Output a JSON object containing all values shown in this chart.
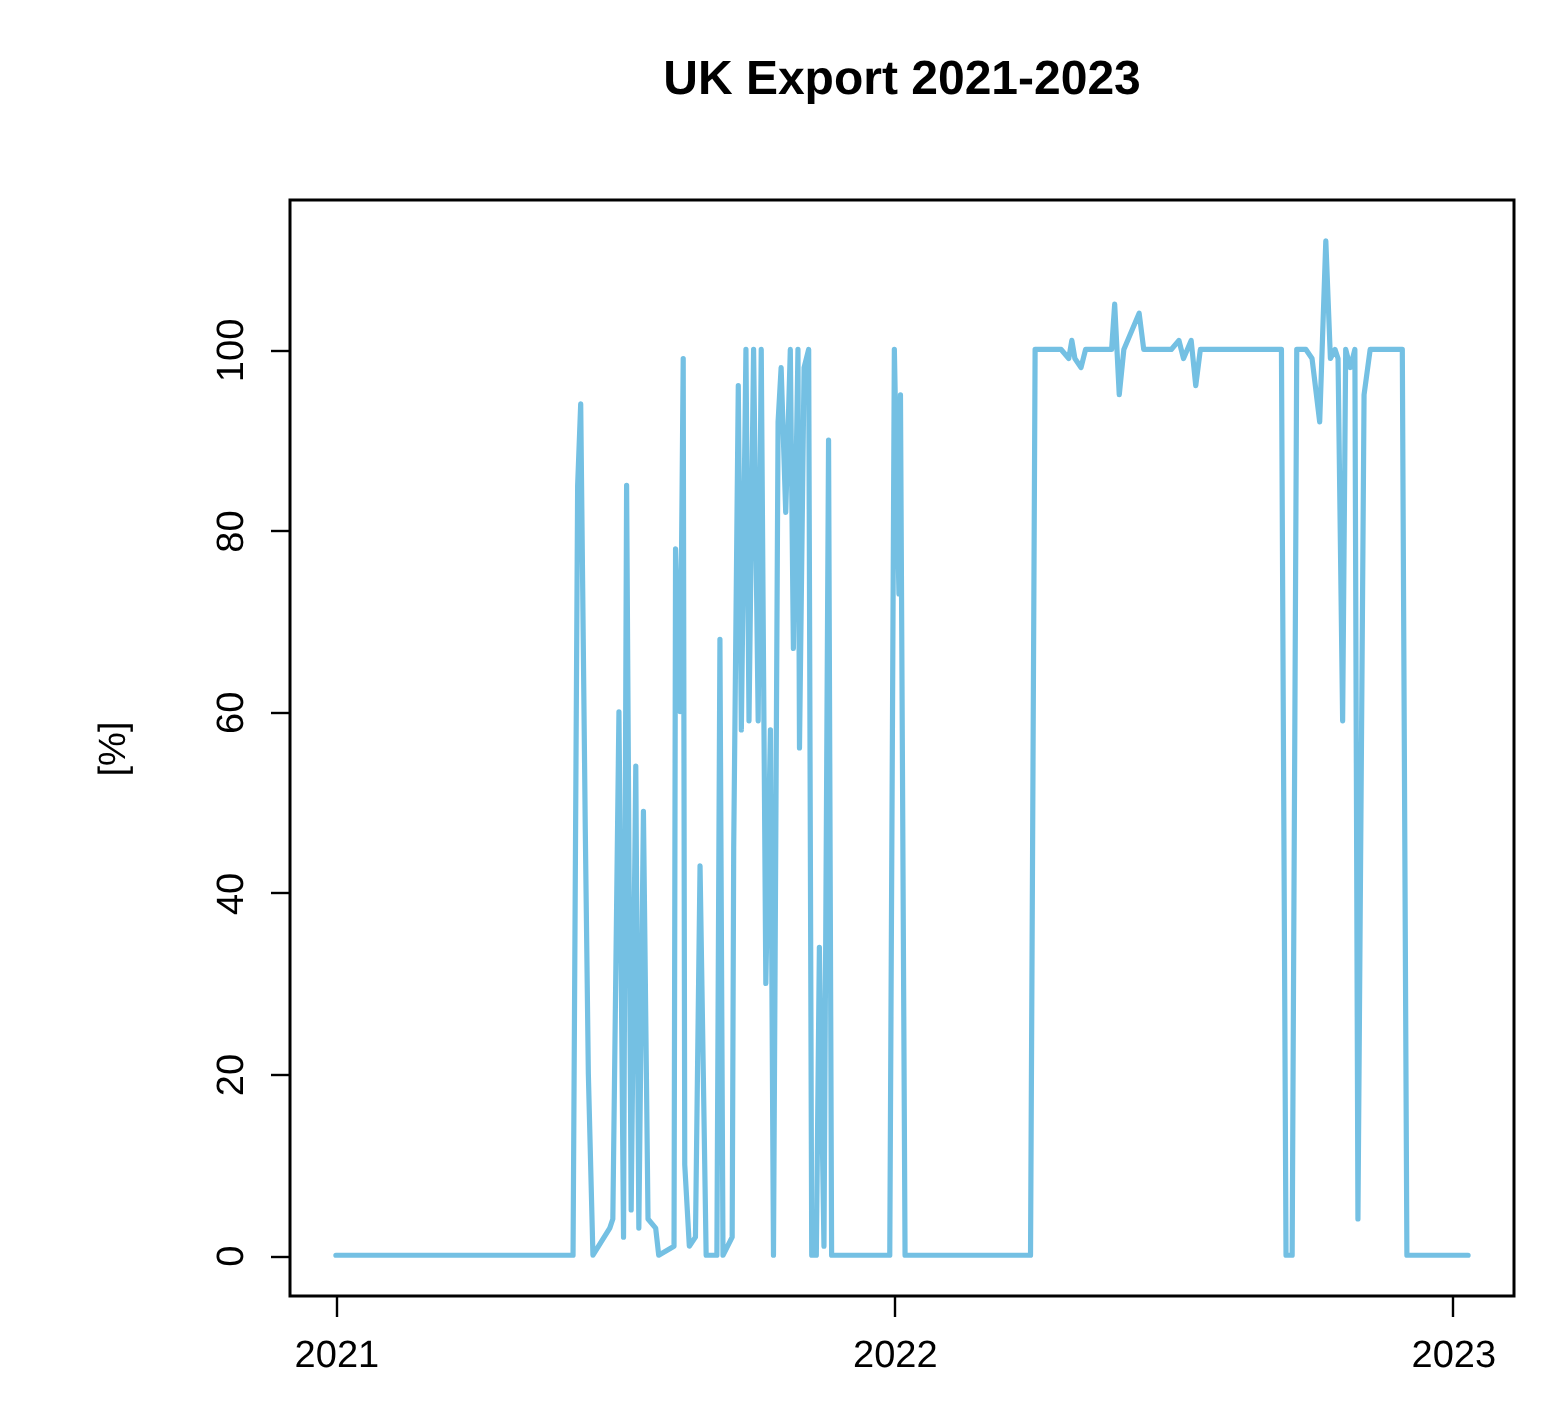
{
  "chart_data": {
    "type": "line",
    "title": "UK Export 2021-2023",
    "ylabel": "[%]",
    "x": [
      "2021-01-01",
      "2021-06-05",
      "2021-06-08",
      "2021-06-10",
      "2021-06-13",
      "2021-06-15",
      "2021-06-18",
      "2021-06-29",
      "2021-07-01",
      "2021-07-05",
      "2021-07-08",
      "2021-07-10",
      "2021-07-13",
      "2021-07-16",
      "2021-07-18",
      "2021-07-21",
      "2021-07-24",
      "2021-07-29",
      "2021-07-31",
      "2021-08-10",
      "2021-08-11",
      "2021-08-14",
      "2021-08-16",
      "2021-08-17",
      "2021-08-20",
      "2021-08-24",
      "2021-08-27",
      "2021-08-31",
      "2021-09-07",
      "2021-09-09",
      "2021-09-11",
      "2021-09-17",
      "2021-09-18",
      "2021-09-21",
      "2021-09-23",
      "2021-09-26",
      "2021-09-28",
      "2021-10-01",
      "2021-10-04",
      "2021-10-06",
      "2021-10-09",
      "2021-10-12",
      "2021-10-14",
      "2021-10-17",
      "2021-10-19",
      "2021-10-22",
      "2021-10-25",
      "2021-10-27",
      "2021-10-30",
      "2021-10-31",
      "2021-11-03",
      "2021-11-06",
      "2021-11-08",
      "2021-11-11",
      "2021-11-13",
      "2021-11-16",
      "2021-11-19",
      "2021-11-21",
      "2021-12-29",
      "2022-01-01",
      "2022-01-04",
      "2022-01-05",
      "2022-01-08",
      "2022-03-31",
      "2022-04-03",
      "2022-04-20",
      "2022-04-25",
      "2022-04-27",
      "2022-04-29",
      "2022-05-03",
      "2022-05-06",
      "2022-05-23",
      "2022-05-25",
      "2022-05-28",
      "2022-05-31",
      "2022-06-10",
      "2022-06-13",
      "2022-07-01",
      "2022-07-06",
      "2022-07-09",
      "2022-07-14",
      "2022-07-17",
      "2022-07-20",
      "2022-09-11",
      "2022-09-14",
      "2022-09-18",
      "2022-09-21",
      "2022-09-27",
      "2022-10-01",
      "2022-10-06",
      "2022-10-10",
      "2022-10-13",
      "2022-10-16",
      "2022-10-18",
      "2022-10-21",
      "2022-10-23",
      "2022-10-26",
      "2022-10-29",
      "2022-10-31",
      "2022-11-04",
      "2022-11-08",
      "2022-11-29",
      "2022-12-02",
      "2023-01-11"
    ],
    "series": [
      {
        "color": "#74c0e3",
        "values": [
          0,
          0,
          85,
          94,
          47,
          20,
          0,
          3,
          4,
          60,
          2,
          85,
          5,
          54,
          3,
          49,
          4,
          3,
          0,
          1,
          78,
          60,
          99,
          10,
          1,
          2,
          43,
          0,
          0,
          68,
          0,
          2,
          45,
          96,
          58,
          100,
          59,
          100,
          59,
          100,
          30,
          58,
          0,
          92,
          98,
          82,
          100,
          67,
          100,
          56,
          98,
          100,
          0,
          0,
          34,
          1,
          90,
          0,
          0,
          100,
          73,
          95,
          0,
          0,
          100,
          100,
          99,
          101,
          99,
          98,
          100,
          100,
          105,
          95,
          100,
          104,
          100,
          100,
          101,
          99,
          101,
          96,
          100,
          100,
          0,
          0,
          100,
          100,
          99,
          92,
          112,
          99,
          100,
          99,
          59,
          100,
          98,
          100,
          4,
          95,
          100,
          100,
          0,
          0
        ]
      }
    ],
    "xlim": [
      "2020-12-02",
      "2023-02-10"
    ],
    "xticks": [
      {
        "value": "2021",
        "label": "2021"
      },
      {
        "value": "2022",
        "label": "2022"
      },
      {
        "value": "2023",
        "label": "2023"
      }
    ],
    "ylim": [
      -4.5,
      116.5
    ],
    "yticks": [
      0,
      20,
      40,
      60,
      80,
      100
    ],
    "grid": false,
    "marker": "none",
    "line_style": "solid"
  }
}
